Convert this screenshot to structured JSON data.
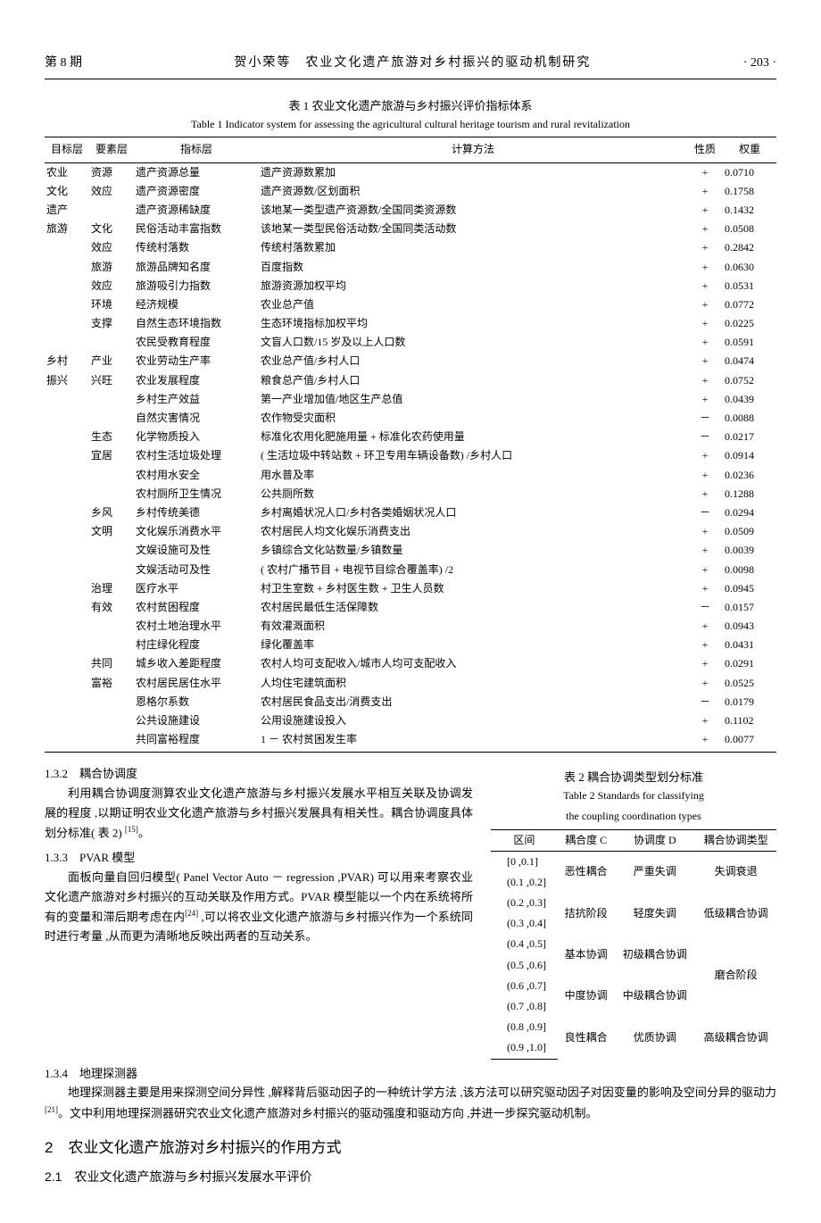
{
  "header": {
    "issue": "第 8 期",
    "running_title": "贺小荣等　农业文化遗产旅游对乡村振兴的驱动机制研究",
    "page_no": "· 203 ·"
  },
  "table1": {
    "title": "表 1 农业文化遗产旅游与乡村振兴评价指标体系",
    "subtitle": "Table 1 Indicator system for assessing the agricultural cultural heritage tourism and rural revitalization",
    "headers": [
      "目标层",
      "要素层",
      "指标层",
      "计算方法",
      "性质",
      "权重"
    ],
    "rows": [
      {
        "c1": "农业",
        "c2": "资源",
        "c3": "遗产资源总量",
        "c4": "遗产资源数累加",
        "c5": "+",
        "c6": "0.0710"
      },
      {
        "c1": "文化",
        "c2": "效应",
        "c3": "遗产资源密度",
        "c4": "遗产资源数/区划面积",
        "c5": "+",
        "c6": "0.1758"
      },
      {
        "c1": "遗产",
        "c2": "",
        "c3": "遗产资源稀缺度",
        "c4": "该地某一类型遗产资源数/全国同类资源数",
        "c5": "+",
        "c6": "0.1432"
      },
      {
        "c1": "旅游",
        "c2": "文化",
        "c3": "民俗活动丰富指数",
        "c4": "该地某一类型民俗活动数/全国同类活动数",
        "c5": "+",
        "c6": "0.0508"
      },
      {
        "c1": "",
        "c2": "效应",
        "c3": "传统村落数",
        "c4": "传统村落数累加",
        "c5": "+",
        "c6": "0.2842"
      },
      {
        "c1": "",
        "c2": "旅游",
        "c3": "旅游品牌知名度",
        "c4": "百度指数",
        "c5": "+",
        "c6": "0.0630"
      },
      {
        "c1": "",
        "c2": "效应",
        "c3": "旅游吸引力指数",
        "c4": "旅游资源加权平均",
        "c5": "+",
        "c6": "0.0531"
      },
      {
        "c1": "",
        "c2": "环境",
        "c3": "经济规模",
        "c4": "农业总产值",
        "c5": "+",
        "c6": "0.0772"
      },
      {
        "c1": "",
        "c2": "支撑",
        "c3": "自然生态环境指数",
        "c4": "生态环境指标加权平均",
        "c5": "+",
        "c6": "0.0225"
      },
      {
        "c1": "",
        "c2": "",
        "c3": "农民受教育程度",
        "c4": "文盲人口数/15 岁及以上人口数",
        "c5": "+",
        "c6": "0.0591"
      },
      {
        "c1": "乡村",
        "c2": "产业",
        "c3": "农业劳动生产率",
        "c4": "农业总产值/乡村人口",
        "c5": "+",
        "c6": "0.0474"
      },
      {
        "c1": "振兴",
        "c2": "兴旺",
        "c3": "农业发展程度",
        "c4": "粮食总产值/乡村人口",
        "c5": "+",
        "c6": "0.0752"
      },
      {
        "c1": "",
        "c2": "",
        "c3": "乡村生产效益",
        "c4": "第一产业增加值/地区生产总值",
        "c5": "+",
        "c6": "0.0439"
      },
      {
        "c1": "",
        "c2": "",
        "c3": "自然灾害情况",
        "c4": "农作物受灾面积",
        "c5": "－",
        "c6": "0.0088"
      },
      {
        "c1": "",
        "c2": "生态",
        "c3": "化学物质投入",
        "c4": "标准化农用化肥施用量 + 标准化农药使用量",
        "c5": "－",
        "c6": "0.0217"
      },
      {
        "c1": "",
        "c2": "宜居",
        "c3": "农村生活垃圾处理",
        "c4": "( 生活垃圾中转站数 + 环卫专用车辆设备数) /乡村人口",
        "c5": "+",
        "c6": "0.0914"
      },
      {
        "c1": "",
        "c2": "",
        "c3": "农村用水安全",
        "c4": "用水普及率",
        "c5": "+",
        "c6": "0.0236"
      },
      {
        "c1": "",
        "c2": "",
        "c3": "农村厕所卫生情况",
        "c4": "公共厕所数",
        "c5": "+",
        "c6": "0.1288"
      },
      {
        "c1": "",
        "c2": "乡风",
        "c3": "乡村传统美德",
        "c4": "乡村离婚状况人口/乡村各类婚姻状况人口",
        "c5": "－",
        "c6": "0.0294"
      },
      {
        "c1": "",
        "c2": "文明",
        "c3": "文化娱乐消费水平",
        "c4": "农村居民人均文化娱乐消费支出",
        "c5": "+",
        "c6": "0.0509"
      },
      {
        "c1": "",
        "c2": "",
        "c3": "文娱设施可及性",
        "c4": "乡镇综合文化站数量/乡镇数量",
        "c5": "+",
        "c6": "0.0039"
      },
      {
        "c1": "",
        "c2": "",
        "c3": "文娱活动可及性",
        "c4": "( 农村广播节目 + 电视节目综合覆盖率) /2",
        "c5": "+",
        "c6": "0.0098"
      },
      {
        "c1": "",
        "c2": "治理",
        "c3": "医疗水平",
        "c4": "村卫生室数 + 乡村医生数 + 卫生人员数",
        "c5": "+",
        "c6": "0.0945"
      },
      {
        "c1": "",
        "c2": "有效",
        "c3": "农村贫困程度",
        "c4": "农村居民最低生活保障数",
        "c5": "－",
        "c6": "0.0157"
      },
      {
        "c1": "",
        "c2": "",
        "c3": "农村土地治理水平",
        "c4": "有效灌溉面积",
        "c5": "+",
        "c6": "0.0943"
      },
      {
        "c1": "",
        "c2": "",
        "c3": "村庄绿化程度",
        "c4": "绿化覆盖率",
        "c5": "+",
        "c6": "0.0431"
      },
      {
        "c1": "",
        "c2": "共同",
        "c3": "城乡收入差距程度",
        "c4": "农村人均可支配收入/城市人均可支配收入",
        "c5": "+",
        "c6": "0.0291"
      },
      {
        "c1": "",
        "c2": "富裕",
        "c3": "农村居民居住水平",
        "c4": "人均住宅建筑面积",
        "c5": "+",
        "c6": "0.0525"
      },
      {
        "c1": "",
        "c2": "",
        "c3": "恩格尔系数",
        "c4": "农村居民食品支出/消费支出",
        "c5": "－",
        "c6": "0.0179"
      },
      {
        "c1": "",
        "c2": "",
        "c3": "公共设施建设",
        "c4": "公用设施建设投入",
        "c5": "+",
        "c6": "0.1102"
      },
      {
        "c1": "",
        "c2": "",
        "c3": "共同富裕程度",
        "c4": "1 － 农村贫困发生率",
        "c5": "+",
        "c6": "0.0077"
      }
    ]
  },
  "left": {
    "s132_head": "1.3.2　耦合协调度",
    "s132_p": "利用耦合协调度测算农业文化遗产旅游与乡村振兴发展水平相互关联及协调发展的程度 ,以期证明农业文化遗产旅游与乡村振兴发展具有相关性。耦合协调度具体划分标准( 表 2) ",
    "s132_cite": "[15]",
    "s132_end": "。",
    "s133_head": "1.3.3　PVAR 模型",
    "s133_p1": "面板向量自回归模型( Panel Vector Auto － regression ,PVAR) 可以用来考察农业文化遗产旅游对乡村振兴的互动关联及作用方式。PVAR 模型能以一个内在系统将所有的变量和滞后期考虑在内",
    "s133_cite": "[24]",
    "s133_p2": " ,可以将农业文化遗产旅游与乡村振兴作为一个系统同时进行考量 ,从而更为清晰地反映出两者的互动关系。",
    "s134_head": "1.3.4　地理探测器",
    "s134_p1": "地理探测器主要是用来探测空间分异性 ,解释背后驱动因子的一种统计学方法 ,该方法可以研究驱动因子对因变量的影响及空间分异的驱动力",
    "s134_cite": "[21]",
    "s134_p2": "。文中利用地理探测器研究农业文化遗产旅游对乡村振兴的驱动强度和驱动方向 ,并进一步探究驱动机制。"
  },
  "table2": {
    "title": "表 2 耦合协调类型划分标准",
    "subtitle1": "Table 2 Standards for classifying",
    "subtitle2": "the coupling coordination types",
    "headers": [
      "区间",
      "耦合度 C",
      "协调度 D",
      "耦合协调类型"
    ],
    "rows": [
      {
        "intv": "[0 ,0.1]",
        "c": "恶性耦合",
        "d": "严重失调",
        "t": "失调衰退",
        "c_rs": 2,
        "d_rs": 2,
        "t_rs": 2
      },
      {
        "intv": "(0.1 ,0.2]"
      },
      {
        "intv": "(0.2 ,0.3]",
        "c": "拮抗阶段",
        "d": "轻度失调",
        "t": "低级耦合协调",
        "c_rs": 2,
        "d_rs": 2,
        "t_rs": 2
      },
      {
        "intv": "(0.3 ,0.4]"
      },
      {
        "intv": "(0.4 ,0.5]",
        "d": "基本协调",
        "t": "初级耦合协调",
        "d_rs": 2,
        "t_rs": 2
      },
      {
        "intv": "(0.5 ,0.6]",
        "c": "磨合阶段",
        "c_rs": 2
      },
      {
        "intv": "(0.6 ,0.7]",
        "d": "中度协调",
        "t": "中级耦合协调",
        "d_rs": 2,
        "t_rs": 2
      },
      {
        "intv": "(0.7 ,0.8]"
      },
      {
        "intv": "(0.8 ,0.9]",
        "c": "良性耦合",
        "d": "优质协调",
        "t": "高级耦合协调",
        "c_rs": 2,
        "d_rs": 2,
        "t_rs": 2
      },
      {
        "intv": "(0.9 ,1.0]"
      }
    ]
  },
  "section2": {
    "h2": "2　农业文化遗产旅游对乡村振兴的作用方式",
    "h3": "2.1　农业文化遗产旅游与乡村振兴发展水平评价"
  }
}
